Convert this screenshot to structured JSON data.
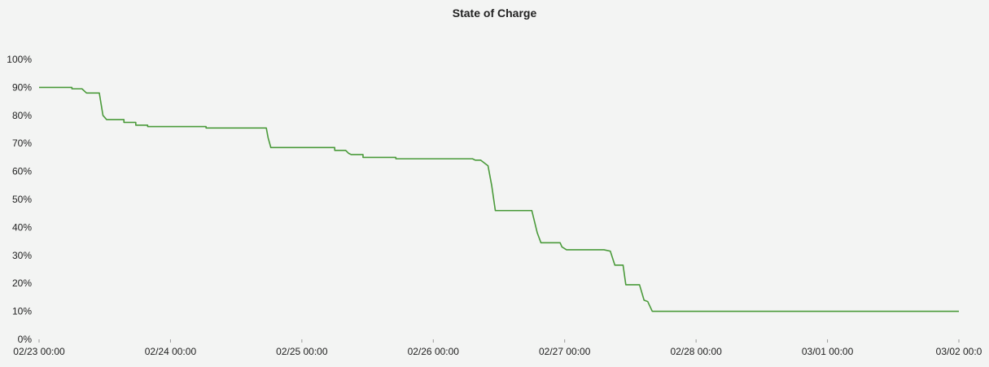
{
  "chart_data": {
    "type": "line",
    "title": "State of Charge",
    "xlabel": "",
    "ylabel": "",
    "ylim": [
      0,
      100
    ],
    "y_ticks": [
      0,
      10,
      20,
      30,
      40,
      50,
      60,
      70,
      80,
      90,
      100
    ],
    "y_tick_labels": [
      "0%",
      "10%",
      "20%",
      "30%",
      "40%",
      "50%",
      "60%",
      "70%",
      "80%",
      "90%",
      "100%"
    ],
    "x_range_days": [
      "02/23 00:00",
      "03/02 00:00"
    ],
    "x_ticks": [
      "02/23 00:00",
      "02/24 00:00",
      "02/25 00:00",
      "02/26 00:00",
      "02/27 00:00",
      "02/28 00:00",
      "03/01 00:00",
      "03/02 00:00"
    ],
    "x_tick_labels": [
      "02/23 00:00",
      "02/24 00:00",
      "02/25 00:00",
      "02/26 00:00",
      "02/27 00:00",
      "02/28 00:00",
      "03/01 00:00",
      "03/02 00:0"
    ],
    "grid": false,
    "legend": "none",
    "series": [
      {
        "color": "#4a9a3a",
        "points": [
          [
            "02/23 00:00",
            90
          ],
          [
            "02/23 06:00",
            90
          ],
          [
            "02/23 06:00",
            89.5
          ],
          [
            "02/23 07:50",
            89.5
          ],
          [
            "02/23 08:40",
            88
          ],
          [
            "02/23 11:00",
            88
          ],
          [
            "02/23 11:40",
            80
          ],
          [
            "02/23 12:20",
            78.5
          ],
          [
            "02/23 15:30",
            78.5
          ],
          [
            "02/23 15:30",
            77.5
          ],
          [
            "02/23 17:40",
            77.5
          ],
          [
            "02/23 17:40",
            76.5
          ],
          [
            "02/23 19:50",
            76.5
          ],
          [
            "02/23 19:50",
            76
          ],
          [
            "02/24 06:30",
            76
          ],
          [
            "02/24 06:30",
            75.5
          ],
          [
            "02/24 17:30",
            75.5
          ],
          [
            "02/24 17:50",
            72
          ],
          [
            "02/24 18:20",
            68.5
          ],
          [
            "02/25 06:00",
            68.5
          ],
          [
            "02/25 06:00",
            67.5
          ],
          [
            "02/25 08:00",
            67.5
          ],
          [
            "02/25 08:30",
            66.5
          ],
          [
            "02/25 09:00",
            66
          ],
          [
            "02/25 11:10",
            66
          ],
          [
            "02/25 11:10",
            65
          ],
          [
            "02/25 17:10",
            65
          ],
          [
            "02/25 17:10",
            64.5
          ],
          [
            "02/26 07:10",
            64.5
          ],
          [
            "02/26 07:40",
            64
          ],
          [
            "02/26 08:40",
            64
          ],
          [
            "02/26 10:00",
            62
          ],
          [
            "02/26 10:40",
            55
          ],
          [
            "02/26 11:20",
            46
          ],
          [
            "02/26 18:00",
            46
          ],
          [
            "02/26 19:00",
            38
          ],
          [
            "02/26 19:40",
            34.5
          ],
          [
            "02/26 23:10",
            34.5
          ],
          [
            "02/26 23:30",
            33
          ],
          [
            "02/27 00:20",
            32
          ],
          [
            "02/27 07:10",
            32
          ],
          [
            "02/27 08:20",
            31.5
          ],
          [
            "02/27 09:10",
            26.5
          ],
          [
            "02/27 10:40",
            26.5
          ],
          [
            "02/27 11:10",
            19.5
          ],
          [
            "02/27 13:40",
            19.5
          ],
          [
            "02/27 14:30",
            14
          ],
          [
            "02/27 15:10",
            13.5
          ],
          [
            "02/27 16:00",
            10
          ],
          [
            "03/02 00:00",
            10
          ]
        ]
      }
    ]
  }
}
